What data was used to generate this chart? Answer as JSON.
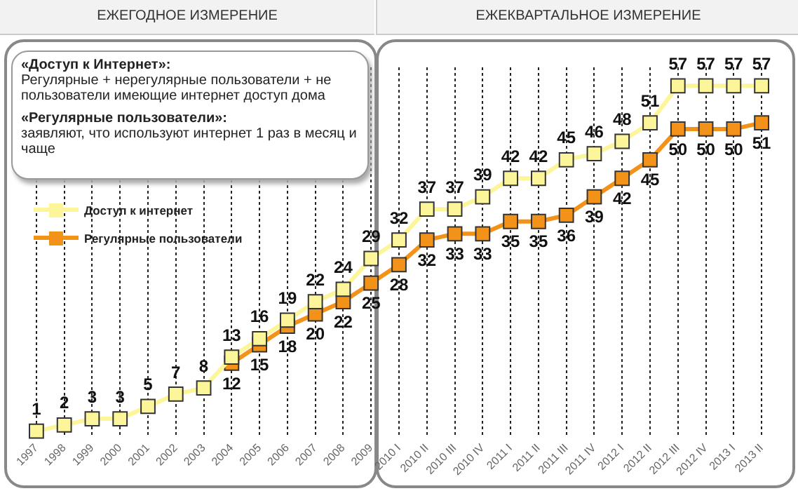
{
  "chart_data": {
    "type": "line",
    "categories": [
      "1997",
      "1998",
      "1999",
      "2000",
      "2001",
      "2002",
      "2003",
      "2004",
      "2005",
      "2006",
      "2007",
      "2008",
      "2009",
      "2010 I",
      "2010 II",
      "2010 III",
      "2010 IV",
      "2011 I",
      "2011 II",
      "2011 III",
      "2011 IV",
      "2012 I",
      "2012 II",
      "2012 III",
      "2012 IV",
      "2013 I",
      "2013 II"
    ],
    "series": [
      {
        "name": "Доступ к интернет",
        "color": "#fdf59a",
        "values": [
          1,
          2,
          3,
          3,
          5,
          7,
          8,
          13,
          16,
          19,
          22,
          24,
          29,
          32,
          37,
          37,
          39,
          42,
          42,
          45,
          46,
          48,
          51,
          57,
          57,
          57,
          57
        ]
      },
      {
        "name": "Регулярные пользователи",
        "color": "#f39218",
        "values": [
          null,
          null,
          null,
          null,
          null,
          null,
          null,
          12,
          15,
          18,
          20,
          22,
          25,
          28,
          32,
          33,
          33,
          35,
          35,
          36,
          39,
          42,
          45,
          50,
          50,
          50,
          51
        ]
      }
    ],
    "annotations": [
      "ЕЖЕГОДНОЕ ИЗМЕРЕНИЕ",
      "ЕЖЕКВАРТАЛЬНОЕ ИЗМЕРЕНИЕ",
      "«Доступ к Интернет»:",
      "Регулярные + нерегулярные пользователи + не пользователи имеющие интернет доступ дома",
      "«Регулярные пользователи»:",
      "заявляют, что используют интернет 1 раз в месяц и чаще"
    ],
    "data_labels": true,
    "grid": "x",
    "legend": "left",
    "marker": "square",
    "line_style": "solid",
    "tick_labels": "x"
  }
}
